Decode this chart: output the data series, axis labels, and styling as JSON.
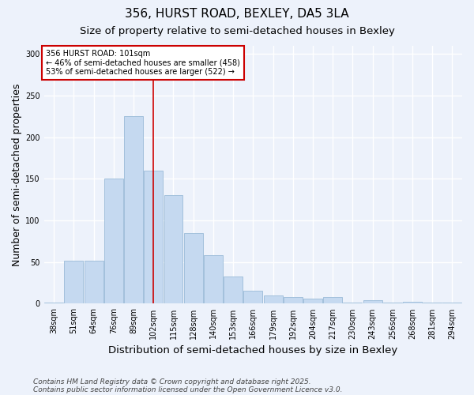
{
  "title1": "356, HURST ROAD, BEXLEY, DA5 3LA",
  "title2": "Size of property relative to semi-detached houses in Bexley",
  "xlabel": "Distribution of semi-detached houses by size in Bexley",
  "ylabel": "Number of semi-detached properties",
  "bar_labels": [
    "38sqm",
    "51sqm",
    "64sqm",
    "76sqm",
    "89sqm",
    "102sqm",
    "115sqm",
    "128sqm",
    "140sqm",
    "153sqm",
    "166sqm",
    "179sqm",
    "192sqm",
    "204sqm",
    "217sqm",
    "230sqm",
    "243sqm",
    "256sqm",
    "268sqm",
    "281sqm",
    "294sqm"
  ],
  "bar_values": [
    1,
    52,
    52,
    150,
    225,
    160,
    130,
    85,
    58,
    33,
    16,
    10,
    8,
    6,
    8,
    1,
    4,
    1,
    2,
    1,
    1
  ],
  "bar_color": "#c5d9f0",
  "bar_edge_color": "#9abbd8",
  "vline_x_idx": 5,
  "vline_color": "#cc0000",
  "annotation_title": "356 HURST ROAD: 101sqm",
  "annotation_line1": "← 46% of semi-detached houses are smaller (458)",
  "annotation_line2": "53% of semi-detached houses are larger (522) →",
  "annotation_box_color": "#ffffff",
  "annotation_box_edge": "#cc0000",
  "ylim": [
    0,
    310
  ],
  "yticks": [
    0,
    50,
    100,
    150,
    200,
    250,
    300
  ],
  "footnote1": "Contains HM Land Registry data © Crown copyright and database right 2025.",
  "footnote2": "Contains public sector information licensed under the Open Government Licence v3.0.",
  "bg_color": "#edf2fb",
  "plot_bg_color": "#edf2fb",
  "grid_color": "#ffffff",
  "title_fontsize": 11,
  "subtitle_fontsize": 9.5,
  "axis_label_fontsize": 9,
  "tick_fontsize": 7,
  "footnote_fontsize": 6.5
}
